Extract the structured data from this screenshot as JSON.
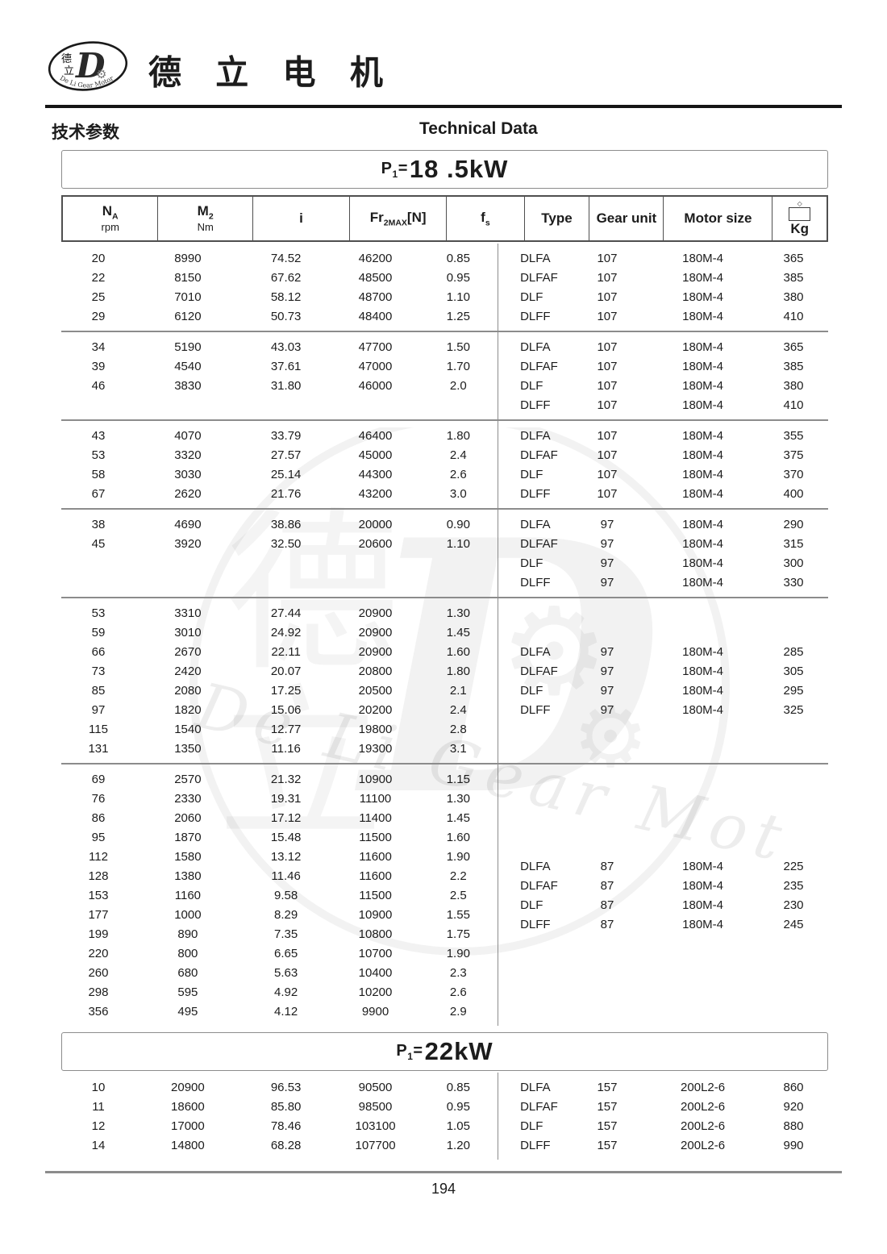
{
  "brand": {
    "company_name": "德 立 电 机",
    "logo_char_top": "德",
    "logo_char_bottom": "立",
    "logo_letter": "D",
    "logo_arc_text": "De Li Gear Motor"
  },
  "subheader": {
    "left": "技术参数",
    "right": "Technical Data"
  },
  "watermark": {
    "char_top": "德",
    "char_bottom": "立",
    "text": "De Li Gear Motor",
    "gear_glyph": "⚙"
  },
  "colors": {
    "text": "#1c1c1c",
    "line_gray": "#8c8c8c",
    "dark_border": "#4f4f4f"
  },
  "table_header": {
    "cols": [
      {
        "key": "na",
        "main": "N",
        "sub": "A",
        "line2": "rpm"
      },
      {
        "key": "m2",
        "main": "M",
        "sub": "2",
        "line2": "Nm"
      },
      {
        "key": "i",
        "main": "i"
      },
      {
        "key": "fr2max",
        "main": "Fr",
        "sub": "2MAX",
        "after": "[N]"
      },
      {
        "key": "fs",
        "main": "f",
        "sub": "s"
      },
      {
        "key": "type",
        "main": "Type"
      },
      {
        "key": "gear-unit",
        "main": "Gear unit"
      },
      {
        "key": "motor-size",
        "main": "Motor size"
      },
      {
        "key": "kg",
        "main": "Kg",
        "icon": "weight-box-icon"
      }
    ]
  },
  "sections": [
    {
      "title": {
        "p": "P",
        "sub": "1",
        "eq": "=",
        "value": "18 .5kW"
      },
      "groups": [
        {
          "right_valign": "top",
          "left": [
            [
              "20",
              "8990",
              "74.52",
              "46200",
              "0.85"
            ],
            [
              "22",
              "8150",
              "67.62",
              "48500",
              "0.95"
            ],
            [
              "25",
              "7010",
              "58.12",
              "48700",
              "1.10"
            ],
            [
              "29",
              "6120",
              "50.73",
              "48400",
              "1.25"
            ]
          ],
          "right": [
            [
              "DLFA",
              "107",
              "180M-4",
              "365"
            ],
            [
              "DLFAF",
              "107",
              "180M-4",
              "385"
            ],
            [
              "DLF",
              "107",
              "180M-4",
              "380"
            ],
            [
              "DLFF",
              "107",
              "180M-4",
              "410"
            ]
          ]
        },
        {
          "right_valign": "top",
          "left": [
            [
              "34",
              "5190",
              "43.03",
              "47700",
              "1.50"
            ],
            [
              "39",
              "4540",
              "37.61",
              "47000",
              "1.70"
            ],
            [
              "46",
              "3830",
              "31.80",
              "46000",
              "2.0"
            ]
          ],
          "right": [
            [
              "DLFA",
              "107",
              "180M-4",
              "365"
            ],
            [
              "DLFAF",
              "107",
              "180M-4",
              "385"
            ],
            [
              "DLF",
              "107",
              "180M-4",
              "380"
            ],
            [
              "DLFF",
              "107",
              "180M-4",
              "410"
            ]
          ]
        },
        {
          "right_valign": "top",
          "left": [
            [
              "43",
              "4070",
              "33.79",
              "46400",
              "1.80"
            ],
            [
              "53",
              "3320",
              "27.57",
              "45000",
              "2.4"
            ],
            [
              "58",
              "3030",
              "25.14",
              "44300",
              "2.6"
            ],
            [
              "67",
              "2620",
              "21.76",
              "43200",
              "3.0"
            ]
          ],
          "right": [
            [
              "DLFA",
              "107",
              "180M-4",
              "355"
            ],
            [
              "DLFAF",
              "107",
              "180M-4",
              "375"
            ],
            [
              "DLF",
              "107",
              "180M-4",
              "370"
            ],
            [
              "DLFF",
              "107",
              "180M-4",
              "400"
            ]
          ]
        },
        {
          "right_valign": "top",
          "left": [
            [
              "38",
              "4690",
              "38.86",
              "20000",
              "0.90"
            ],
            [
              "45",
              "3920",
              "32.50",
              "20600",
              "1.10"
            ]
          ],
          "right": [
            [
              "DLFA",
              "97",
              "180M-4",
              "290"
            ],
            [
              "DLFAF",
              "97",
              "180M-4",
              "315"
            ],
            [
              "DLF",
              "97",
              "180M-4",
              "300"
            ],
            [
              "DLFF",
              "97",
              "180M-4",
              "330"
            ]
          ]
        },
        {
          "right_valign": "center",
          "left": [
            [
              "53",
              "3310",
              "27.44",
              "20900",
              "1.30"
            ],
            [
              "59",
              "3010",
              "24.92",
              "20900",
              "1.45"
            ],
            [
              "66",
              "2670",
              "22.11",
              "20900",
              "1.60"
            ],
            [
              "73",
              "2420",
              "20.07",
              "20800",
              "1.80"
            ],
            [
              "85",
              "2080",
              "17.25",
              "20500",
              "2.1"
            ],
            [
              "97",
              "1820",
              "15.06",
              "20200",
              "2.4"
            ],
            [
              "115",
              "1540",
              "12.77",
              "19800",
              "2.8"
            ],
            [
              "131",
              "1350",
              "11.16",
              "19300",
              "3.1"
            ]
          ],
          "right": [
            [
              "DLFA",
              "97",
              "180M-4",
              "285"
            ],
            [
              "DLFAF",
              "97",
              "180M-4",
              "305"
            ],
            [
              "DLF",
              "97",
              "180M-4",
              "295"
            ],
            [
              "DLFF",
              "97",
              "180M-4",
              "325"
            ]
          ]
        },
        {
          "right_valign": "center",
          "left": [
            [
              "69",
              "2570",
              "21.32",
              "10900",
              "1.15"
            ],
            [
              "76",
              "2330",
              "19.31",
              "11100",
              "1.30"
            ],
            [
              "86",
              "2060",
              "17.12",
              "11400",
              "1.45"
            ],
            [
              "95",
              "1870",
              "15.48",
              "11500",
              "1.60"
            ],
            [
              "112",
              "1580",
              "13.12",
              "11600",
              "1.90"
            ],
            [
              "128",
              "1380",
              "11.46",
              "11600",
              "2.2"
            ],
            [
              "153",
              "1160",
              "9.58",
              "11500",
              "2.5"
            ],
            [
              "177",
              "1000",
              "8.29",
              "10900",
              "1.55"
            ],
            [
              "199",
              "890",
              "7.35",
              "10800",
              "1.75"
            ],
            [
              "220",
              "800",
              "6.65",
              "10700",
              "1.90"
            ],
            [
              "260",
              "680",
              "5.63",
              "10400",
              "2.3"
            ],
            [
              "298",
              "595",
              "4.92",
              "10200",
              "2.6"
            ],
            [
              "356",
              "495",
              "4.12",
              "9900",
              "2.9"
            ]
          ],
          "right": [
            [
              "DLFA",
              "87",
              "180M-4",
              "225"
            ],
            [
              "DLFAF",
              "87",
              "180M-4",
              "235"
            ],
            [
              "DLF",
              "87",
              "180M-4",
              "230"
            ],
            [
              "DLFF",
              "87",
              "180M-4",
              "245"
            ]
          ]
        }
      ]
    },
    {
      "title": {
        "p": "P",
        "sub": "1",
        "eq": "=",
        "value": "22kW"
      },
      "groups": [
        {
          "right_valign": "top",
          "left": [
            [
              "10",
              "20900",
              "96.53",
              "90500",
              "0.85"
            ],
            [
              "11",
              "18600",
              "85.80",
              "98500",
              "0.95"
            ],
            [
              "12",
              "17000",
              "78.46",
              "103100",
              "1.05"
            ],
            [
              "14",
              "14800",
              "68.28",
              "107700",
              "1.20"
            ]
          ],
          "right": [
            [
              "DLFA",
              "157",
              "200L2-6",
              "860"
            ],
            [
              "DLFAF",
              "157",
              "200L2-6",
              "920"
            ],
            [
              "DLF",
              "157",
              "200L2-6",
              "880"
            ],
            [
              "DLFF",
              "157",
              "200L2-6",
              "990"
            ]
          ]
        }
      ]
    }
  ],
  "page_number": "194"
}
